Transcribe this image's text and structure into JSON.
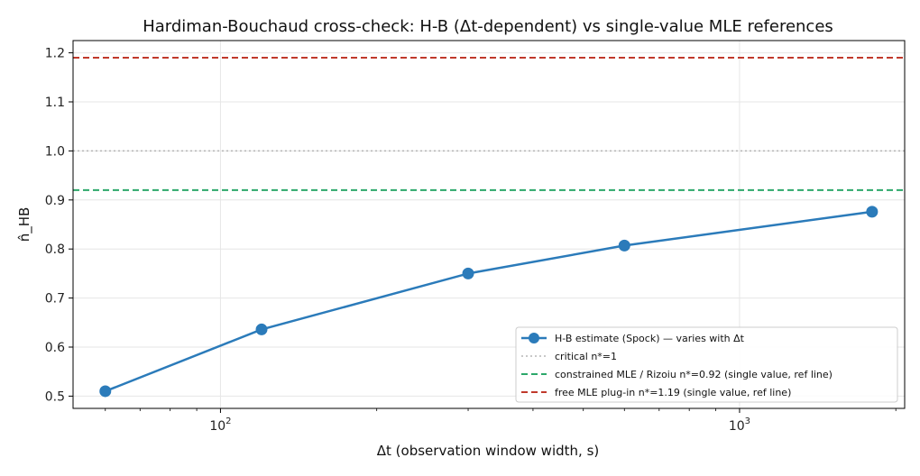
{
  "chart_data": {
    "type": "line",
    "title": "Hardiman-Bouchaud cross-check: H-B (Δt-dependent) vs single-value MLE references",
    "xlabel": "Δt (observation window width, s)",
    "ylabel": "n̂_HB",
    "x_scale": "log",
    "xlim": [
      52,
      2080
    ],
    "ylim": [
      0.475,
      1.225
    ],
    "grid": true,
    "x_ticks": [
      {
        "value": 100,
        "base": "10",
        "exp": "2"
      },
      {
        "value": 1000,
        "base": "10",
        "exp": "3"
      }
    ],
    "y_ticks": [
      {
        "value": 0.5,
        "label": "0.5"
      },
      {
        "value": 0.6,
        "label": "0.6"
      },
      {
        "value": 0.7,
        "label": "0.7"
      },
      {
        "value": 0.8,
        "label": "0.8"
      },
      {
        "value": 0.9,
        "label": "0.9"
      },
      {
        "value": 1.0,
        "label": "1.0"
      },
      {
        "value": 1.1,
        "label": "1.1"
      },
      {
        "value": 1.2,
        "label": "1.2"
      }
    ],
    "series": [
      {
        "name": "H-B estimate (Spock) — varies with Δt",
        "color": "#2b7bba",
        "x": [
          60,
          120,
          300,
          600,
          1800
        ],
        "y": [
          0.51,
          0.636,
          0.75,
          0.807,
          0.876
        ]
      }
    ],
    "reference_lines": [
      {
        "name": "critical n*=1",
        "value": 1.0,
        "color": "#b5b5b5",
        "style": "dotted"
      },
      {
        "name": "constrained MLE / Rizoiu n*=0.92 (single value, ref line)",
        "value": 0.92,
        "color": "#2ca86a",
        "style": "dashed"
      },
      {
        "name": "free MLE plug-in n*=1.19 (single value, ref line)",
        "value": 1.19,
        "color": "#c0392b",
        "style": "dashed"
      }
    ],
    "legend_position": "lower-right"
  }
}
